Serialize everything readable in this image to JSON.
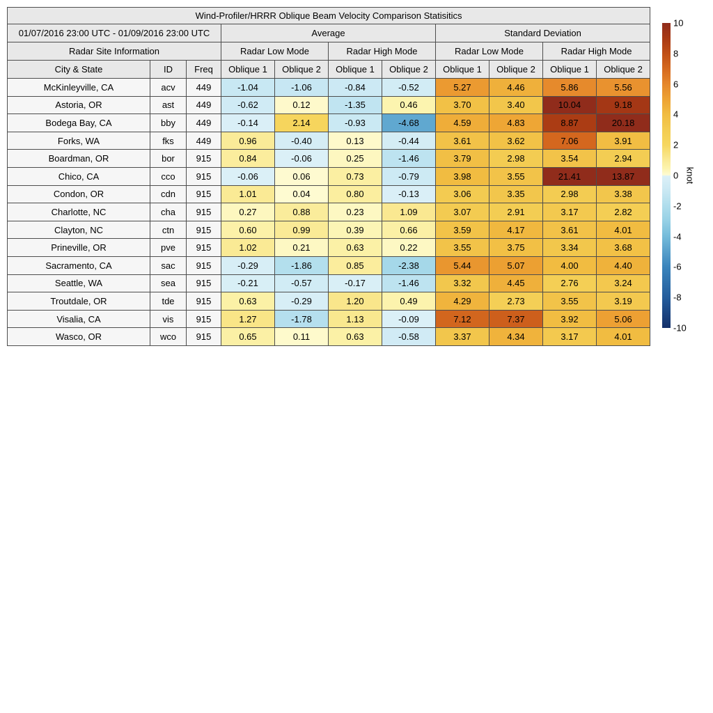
{
  "chart_data": {
    "type": "heatmap-table",
    "title": "Wind-Profiler/HRRR Oblique Beam Velocity Comparison Statisitics",
    "date_range_label": "01/07/2016 23:00 UTC - 01/09/2016 23:00 UTC",
    "group_labels": {
      "average": "Average",
      "std": "Standard Deviation",
      "site_info": "Radar Site Information",
      "low_mode": "Radar Low Mode",
      "high_mode": "Radar High Mode"
    },
    "column_labels": {
      "city": "City & State",
      "id": "ID",
      "freq": "Freq",
      "oblique1": "Oblique 1",
      "oblique2": "Oblique 2"
    },
    "value_columns": [
      "avg_low_ob1",
      "avg_low_ob2",
      "avg_high_ob1",
      "avg_high_ob2",
      "sd_low_ob1",
      "sd_low_ob2",
      "sd_high_ob1",
      "sd_high_ob2"
    ],
    "rows": [
      {
        "city": "McKinleyville, CA",
        "id": "acv",
        "freq": "449",
        "values": [
          -1.04,
          -1.06,
          -0.84,
          -0.52,
          5.27,
          4.46,
          5.86,
          5.56
        ]
      },
      {
        "city": "Astoria, OR",
        "id": "ast",
        "freq": "449",
        "values": [
          -0.62,
          0.12,
          -1.35,
          0.46,
          3.7,
          3.4,
          10.04,
          9.18
        ]
      },
      {
        "city": "Bodega Bay, CA",
        "id": "bby",
        "freq": "449",
        "values": [
          -0.14,
          2.14,
          -0.93,
          -4.68,
          4.59,
          4.83,
          8.87,
          20.18
        ]
      },
      {
        "city": "Forks, WA",
        "id": "fks",
        "freq": "449",
        "values": [
          0.96,
          -0.4,
          0.13,
          -0.44,
          3.61,
          3.62,
          7.06,
          3.91
        ]
      },
      {
        "city": "Boardman, OR",
        "id": "bor",
        "freq": "915",
        "values": [
          0.84,
          -0.06,
          0.25,
          -1.46,
          3.79,
          2.98,
          3.54,
          2.94
        ]
      },
      {
        "city": "Chico, CA",
        "id": "cco",
        "freq": "915",
        "values": [
          -0.06,
          0.06,
          0.73,
          -0.79,
          3.98,
          3.55,
          21.41,
          13.87
        ]
      },
      {
        "city": "Condon, OR",
        "id": "cdn",
        "freq": "915",
        "values": [
          1.01,
          0.04,
          0.8,
          -0.13,
          3.06,
          3.35,
          2.98,
          3.38
        ]
      },
      {
        "city": "Charlotte, NC",
        "id": "cha",
        "freq": "915",
        "values": [
          0.27,
          0.88,
          0.23,
          1.09,
          3.07,
          2.91,
          3.17,
          2.82
        ]
      },
      {
        "city": "Clayton, NC",
        "id": "ctn",
        "freq": "915",
        "values": [
          0.6,
          0.99,
          0.39,
          0.66,
          3.59,
          4.17,
          3.61,
          4.01
        ]
      },
      {
        "city": "Prineville, OR",
        "id": "pve",
        "freq": "915",
        "values": [
          1.02,
          0.21,
          0.63,
          0.22,
          3.55,
          3.75,
          3.34,
          3.68
        ]
      },
      {
        "city": "Sacramento, CA",
        "id": "sac",
        "freq": "915",
        "values": [
          -0.29,
          -1.86,
          0.85,
          -2.38,
          5.44,
          5.07,
          4.0,
          4.4
        ]
      },
      {
        "city": "Seattle, WA",
        "id": "sea",
        "freq": "915",
        "values": [
          -0.21,
          -0.57,
          -0.17,
          -1.46,
          3.32,
          4.45,
          2.76,
          3.24
        ]
      },
      {
        "city": "Troutdale, OR",
        "id": "tde",
        "freq": "915",
        "values": [
          0.63,
          -0.29,
          1.2,
          0.49,
          4.29,
          2.73,
          3.55,
          3.19
        ]
      },
      {
        "city": "Visalia, CA",
        "id": "vis",
        "freq": "915",
        "values": [
          1.27,
          -1.78,
          1.13,
          -0.09,
          7.12,
          7.37,
          3.92,
          5.06
        ]
      },
      {
        "city": "Wasco, OR",
        "id": "wco",
        "freq": "915",
        "values": [
          0.65,
          0.11,
          0.63,
          -0.58,
          3.37,
          4.34,
          3.17,
          4.01
        ]
      }
    ],
    "colorbar": {
      "label": "knot",
      "min": -10,
      "max": 10,
      "ticks": [
        10,
        8,
        6,
        4,
        2,
        0,
        -2,
        -4,
        -6,
        -8,
        -10
      ],
      "gradient_stops": [
        [
          10,
          "#902C1B"
        ],
        [
          9,
          "#A83914"
        ],
        [
          8,
          "#C04F16"
        ],
        [
          7,
          "#D5691F"
        ],
        [
          6,
          "#E5862B"
        ],
        [
          5,
          "#EDA233"
        ],
        [
          4,
          "#F1BC41"
        ],
        [
          3,
          "#F3CC52"
        ],
        [
          2,
          "#F6D75F"
        ],
        [
          1,
          "#FAEA96"
        ],
        [
          0.5,
          "#FCF3AC"
        ],
        [
          0.03,
          "#FEFBD2"
        ],
        [
          -0.03,
          "#DCF0F7"
        ],
        [
          -1,
          "#C9E8F3"
        ],
        [
          -2,
          "#AFDDEC"
        ],
        [
          -3,
          "#95D0E5"
        ],
        [
          -4,
          "#74BBDA"
        ],
        [
          -6,
          "#3A84BC"
        ],
        [
          -8,
          "#245D9C"
        ],
        [
          -10,
          "#14306A"
        ]
      ]
    }
  }
}
